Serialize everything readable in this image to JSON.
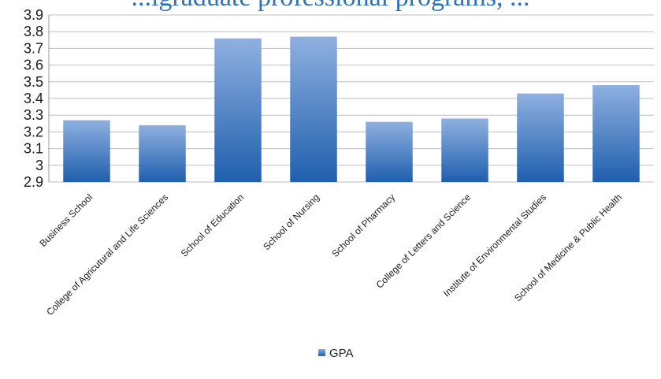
{
  "chart_data": {
    "type": "bar",
    "title": "...igraduate professional programs, ...",
    "categories": [
      "Business School",
      "College of Agricutural and Life Sciences",
      "School of Education",
      "School of Nursing",
      "School of Pharmacy",
      "College of Letters and Science",
      "Institute of Environmental Studies",
      "School of Medicine & Public Health"
    ],
    "series": [
      {
        "name": "GPA",
        "values": [
          3.27,
          3.24,
          3.76,
          3.77,
          3.26,
          3.28,
          3.43,
          3.48
        ]
      }
    ],
    "ylim": [
      2.9,
      3.9
    ],
    "yticks": [
      "2.9",
      "3",
      "3.1",
      "3.2",
      "3.3",
      "3.4",
      "3.5",
      "3.6",
      "3.7",
      "3.8",
      "3.9"
    ],
    "ytick_values": [
      2.9,
      3.0,
      3.1,
      3.2,
      3.3,
      3.4,
      3.5,
      3.6,
      3.7,
      3.8,
      3.9
    ],
    "grid": true,
    "legend_position": "bottom",
    "colors": {
      "bar_top": "#8fb0e0",
      "bar_bottom": "#1f5fad",
      "grid": "#bfbfbf",
      "title": "#2e73b8"
    }
  }
}
